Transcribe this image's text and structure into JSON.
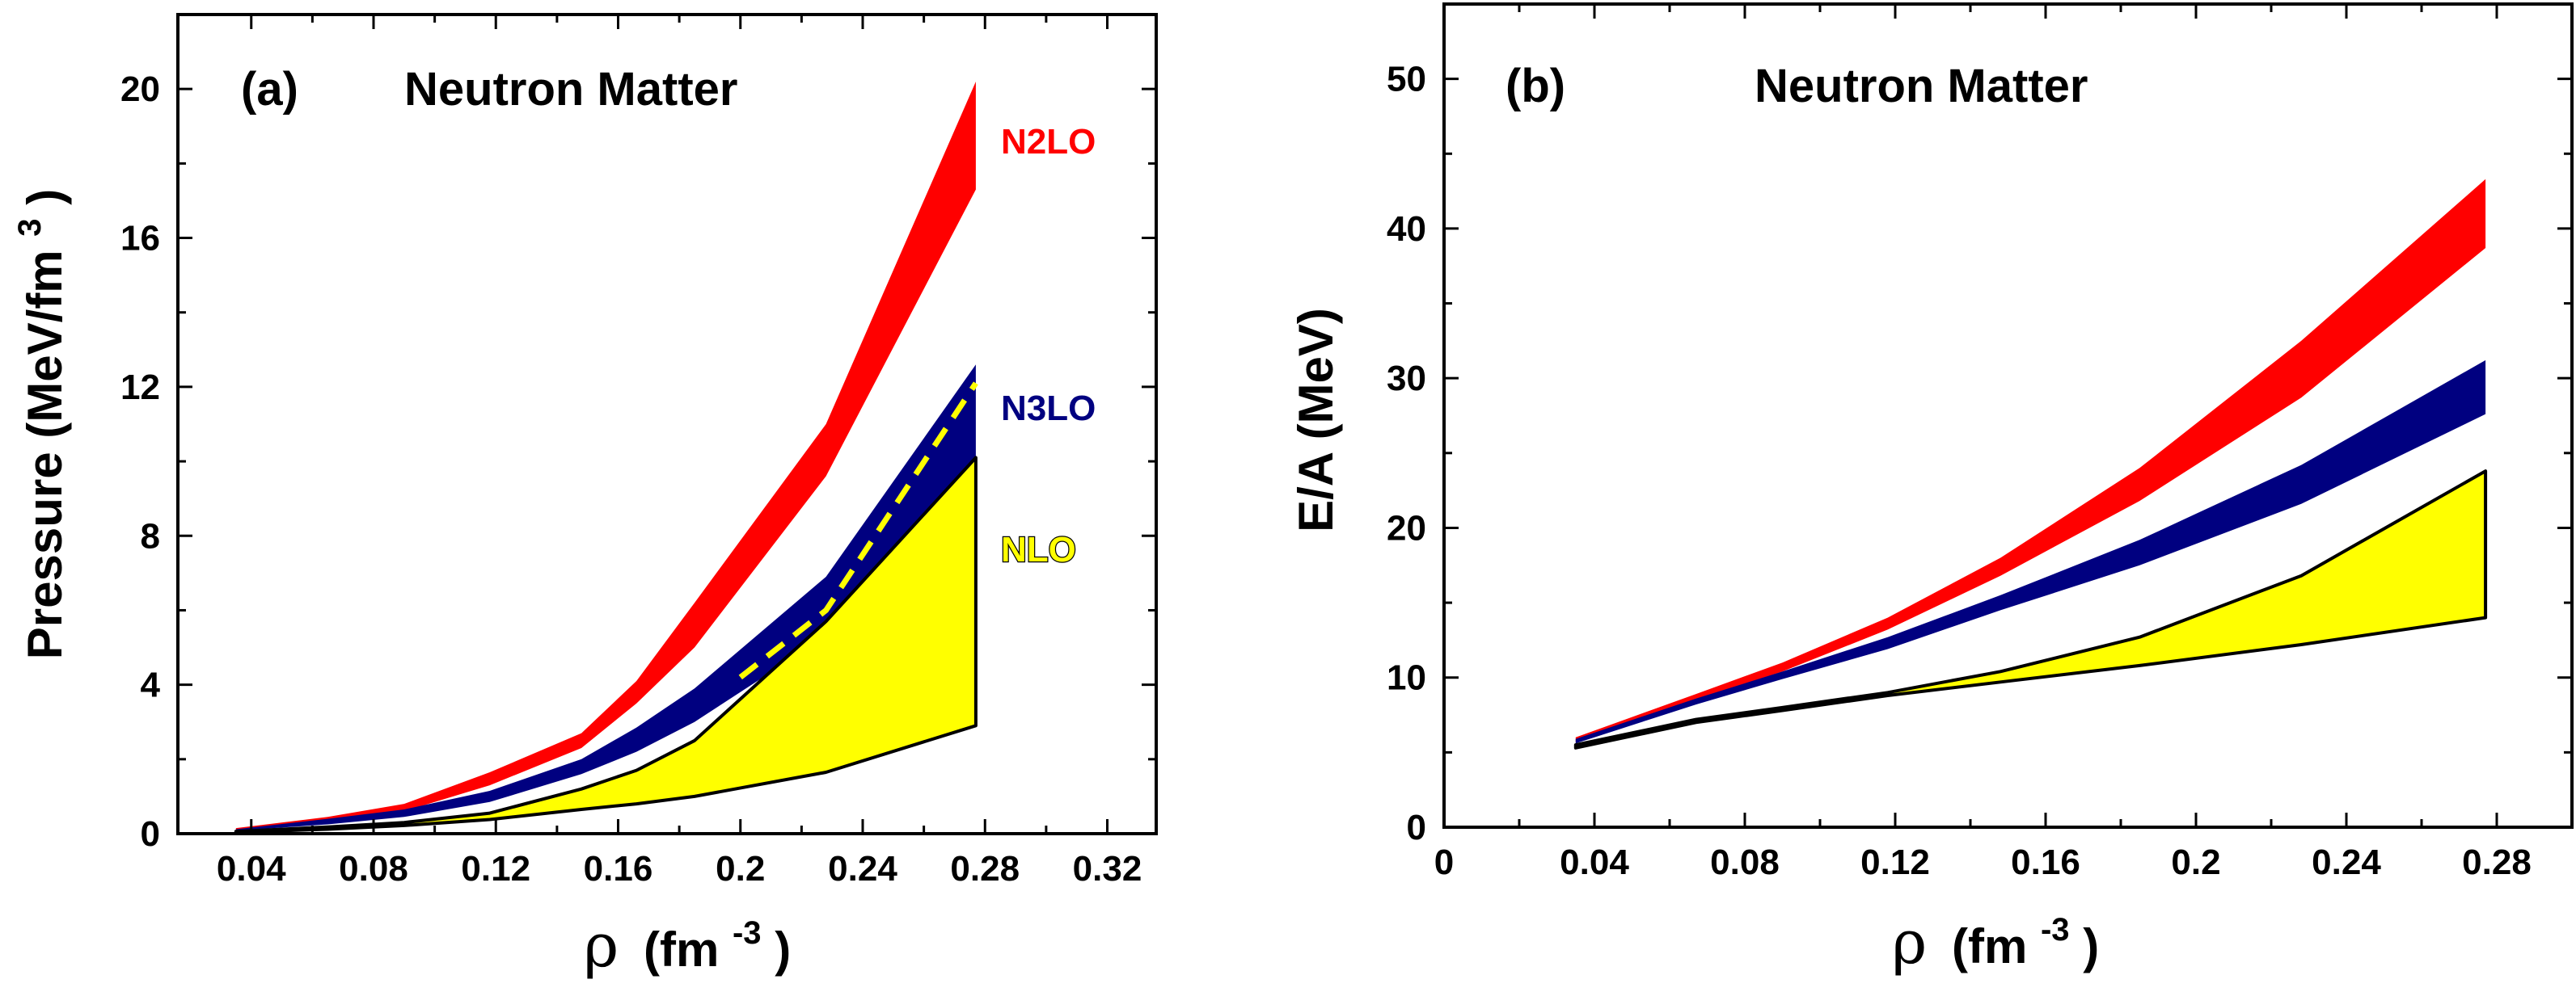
{
  "chart_data": [
    {
      "type": "area",
      "panel": "(a)",
      "title": "Neutron Matter",
      "xlabel": "ρ (fm-3)",
      "xlabel_symbol": "ρ",
      "xlabel_unit": "(fm",
      "xlabel_exp": "-3",
      "xlabel_close": ")",
      "ylabel": "Pressure (MeV/fm3)",
      "ylabel_main": "Pressure (MeV/fm",
      "ylabel_exp": "3",
      "ylabel_close": ")",
      "xlim": [
        0.016,
        0.336
      ],
      "ylim": [
        0,
        22
      ],
      "xticks": [
        0.04,
        0.08,
        0.12,
        0.16,
        0.2,
        0.24,
        0.28,
        0.32
      ],
      "xtick_labels": [
        "0.04",
        "0.08",
        "0.12",
        "0.16",
        "0.2",
        "0.24",
        "0.28",
        "0.32"
      ],
      "yticks": [
        0,
        4,
        8,
        12,
        16,
        20
      ],
      "ytick_labels": [
        "0",
        "4",
        "8",
        "12",
        "16",
        "20"
      ],
      "series": [
        {
          "name": "N2LO",
          "color": "#ff0000",
          "x": [
            0.035,
            0.065,
            0.09,
            0.118,
            0.148,
            0.166,
            0.185,
            0.228,
            0.277
          ],
          "upper": [
            0.15,
            0.45,
            0.8,
            1.65,
            2.7,
            4.1,
            6.2,
            11.0,
            20.2
          ],
          "lower": [
            0.1,
            0.3,
            0.6,
            1.3,
            2.3,
            3.5,
            5.0,
            9.6,
            17.3
          ]
        },
        {
          "name": "N3LO",
          "color": "#000080",
          "x": [
            0.035,
            0.065,
            0.09,
            0.118,
            0.148,
            0.166,
            0.185,
            0.228,
            0.277
          ],
          "upper": [
            0.12,
            0.4,
            0.65,
            1.15,
            2.0,
            2.85,
            3.9,
            6.9,
            12.6
          ],
          "lower": [
            0.08,
            0.25,
            0.45,
            0.85,
            1.6,
            2.2,
            3.0,
            5.3,
            9.9
          ]
        },
        {
          "name": "NLO",
          "color": "#ffff00",
          "x": [
            0.035,
            0.065,
            0.09,
            0.118,
            0.148,
            0.166,
            0.185,
            0.228,
            0.277
          ],
          "upper": [
            0.06,
            0.18,
            0.3,
            0.55,
            1.2,
            1.7,
            2.5,
            5.7,
            10.1
          ],
          "lower": [
            0.04,
            0.12,
            0.22,
            0.38,
            0.65,
            0.8,
            1.0,
            1.65,
            2.9
          ]
        }
      ],
      "dashed_line": {
        "color": "#ffff00",
        "x": [
          0.2,
          0.228,
          0.277
        ],
        "y": [
          4.2,
          6.0,
          12.1
        ]
      }
    },
    {
      "type": "area",
      "panel": "(b)",
      "title": "Neutron Matter",
      "xlabel": "ρ (fm-3)",
      "xlabel_symbol": "ρ",
      "xlabel_unit": "(fm",
      "xlabel_exp": "-3",
      "xlabel_close": ")",
      "ylabel": "E/A (MeV)",
      "xlim": [
        0,
        0.3
      ],
      "ylim": [
        0,
        55
      ],
      "xticks": [
        0,
        0.04,
        0.08,
        0.12,
        0.16,
        0.2,
        0.24,
        0.28
      ],
      "xtick_labels": [
        "0",
        "0.04",
        "0.08",
        "0.12",
        "0.16",
        "0.2",
        "0.24",
        "0.28"
      ],
      "yticks": [
        0,
        10,
        20,
        30,
        40,
        50
      ],
      "ytick_labels": [
        "0",
        "10",
        "20",
        "30",
        "40",
        "50"
      ],
      "series": [
        {
          "name": "N2LO",
          "color": "#ff0000",
          "x": [
            0.035,
            0.067,
            0.09,
            0.118,
            0.148,
            0.185,
            0.228,
            0.277
          ],
          "upper": [
            6.0,
            8.9,
            11.0,
            14.0,
            18.0,
            24.0,
            32.5,
            43.3
          ],
          "lower": [
            5.7,
            8.5,
            10.4,
            13.2,
            16.8,
            21.8,
            28.7,
            38.7
          ]
        },
        {
          "name": "N3LO",
          "color": "#000080",
          "x": [
            0.035,
            0.067,
            0.09,
            0.118,
            0.148,
            0.185,
            0.228,
            0.277
          ],
          "upper": [
            5.9,
            8.6,
            10.4,
            12.7,
            15.5,
            19.2,
            24.2,
            31.2
          ],
          "lower": [
            5.6,
            8.2,
            9.9,
            11.9,
            14.5,
            17.5,
            21.6,
            27.6
          ]
        },
        {
          "name": "NLO",
          "color": "#ffff00",
          "x": [
            0.035,
            0.067,
            0.09,
            0.118,
            0.148,
            0.185,
            0.228,
            0.277
          ],
          "upper": [
            5.5,
            7.2,
            8.0,
            9.0,
            10.4,
            12.7,
            16.8,
            23.8
          ],
          "lower": [
            5.3,
            7.0,
            7.8,
            8.8,
            9.7,
            10.8,
            12.2,
            14.0
          ]
        }
      ]
    }
  ]
}
